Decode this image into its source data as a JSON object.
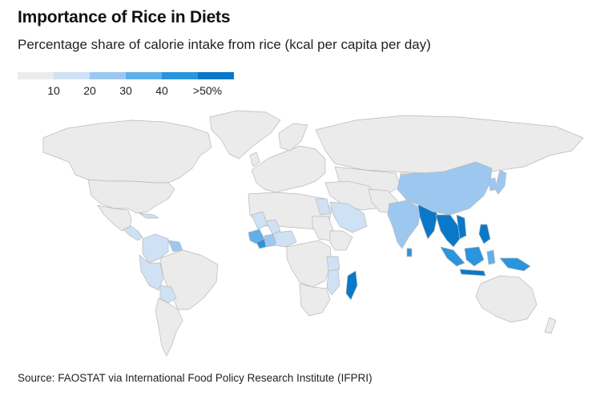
{
  "title": "Importance of Rice in Diets",
  "subtitle": "Percentage share of calorie intake from rice (kcal per capita per day)",
  "source": "Source: FAOSTAT via International Food Policy Research Institute (IFPRI)",
  "legend": {
    "colors": [
      "#ebebeb",
      "#cfe1f4",
      "#9cc8f0",
      "#5fb0ea",
      "#2a95dc",
      "#0a78c9"
    ],
    "labels": [
      "10",
      "20",
      "30",
      "40",
      ">50%"
    ]
  },
  "map": {
    "bins": {
      "none": "#ebebeb",
      "b10": "#cfe1f4",
      "b20": "#9cc8f0",
      "b30": "#5fb0ea",
      "b40": "#2a95dc",
      "b50": "#0a78c9"
    }
  }
}
